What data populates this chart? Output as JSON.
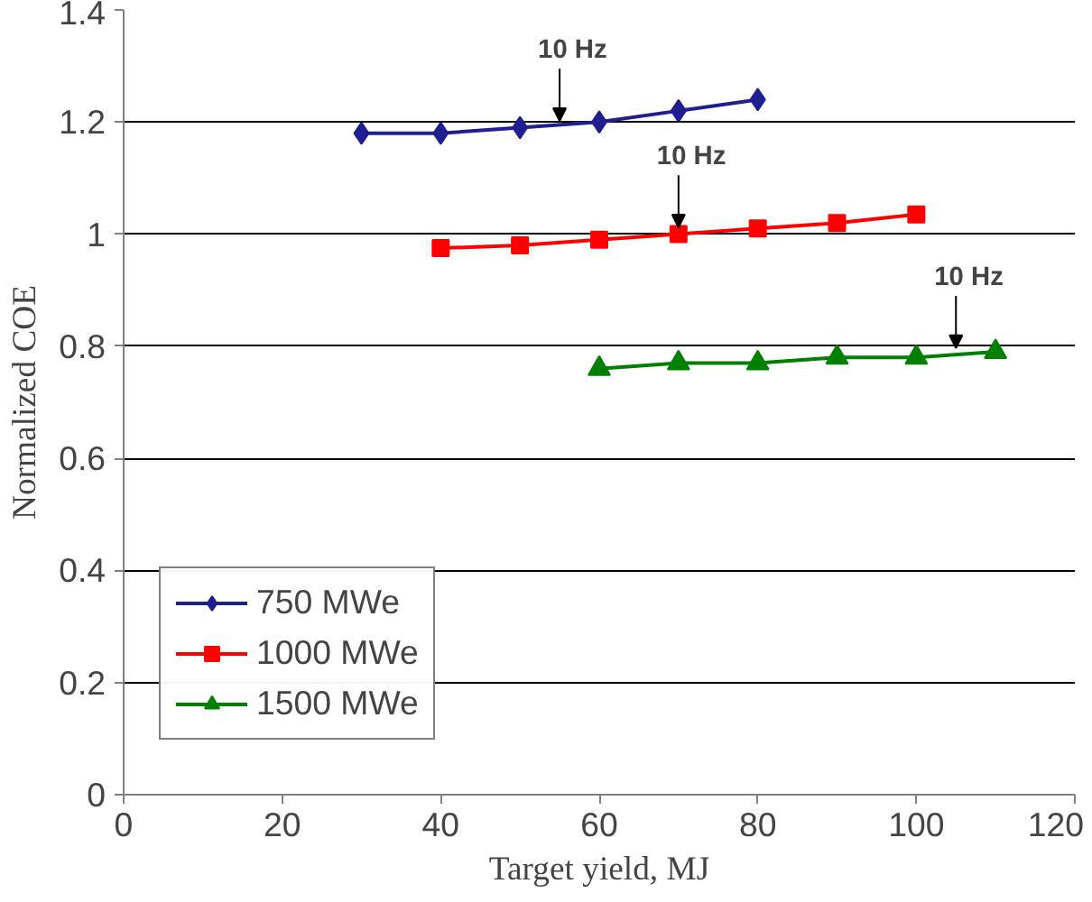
{
  "chart_data": {
    "type": "line",
    "xlabel": "Target yield, MJ",
    "ylabel": "Normalized COE",
    "xlim": [
      0,
      120
    ],
    "xticks": [
      0,
      20,
      40,
      60,
      80,
      100,
      120
    ],
    "ylim": [
      0,
      1.4
    ],
    "yticks": [
      0,
      0.2,
      0.4,
      0.6,
      0.8,
      1,
      1.2,
      1.4
    ],
    "grid": "y",
    "legend": "bottom left",
    "line_style": "solid",
    "series": [
      {
        "name": "750 MWe",
        "color": "#1f1f8f",
        "marker": "diamond",
        "x": [
          30,
          40,
          50,
          60,
          70,
          80
        ],
        "values": [
          1.18,
          1.18,
          1.19,
          1.2,
          1.22,
          1.24
        ]
      },
      {
        "name": "1000 MWe",
        "color": "#ff0000",
        "marker": "square",
        "x": [
          40,
          50,
          60,
          70,
          80,
          90,
          100
        ],
        "values": [
          0.975,
          0.98,
          0.99,
          1.0,
          1.01,
          1.02,
          1.035
        ]
      },
      {
        "name": "1500 MWe",
        "color": "#008000",
        "marker": "triangle",
        "x": [
          60,
          70,
          80,
          90,
          100,
          110
        ],
        "values": [
          0.76,
          0.77,
          0.77,
          0.78,
          0.78,
          0.79
        ]
      }
    ],
    "annotations": [
      {
        "text": "10 Hz",
        "x": 55,
        "y": 1.19
      },
      {
        "text": "10 Hz",
        "x": 70,
        "y": 1.0
      },
      {
        "text": "10 Hz",
        "x": 105,
        "y": 0.785
      }
    ]
  }
}
